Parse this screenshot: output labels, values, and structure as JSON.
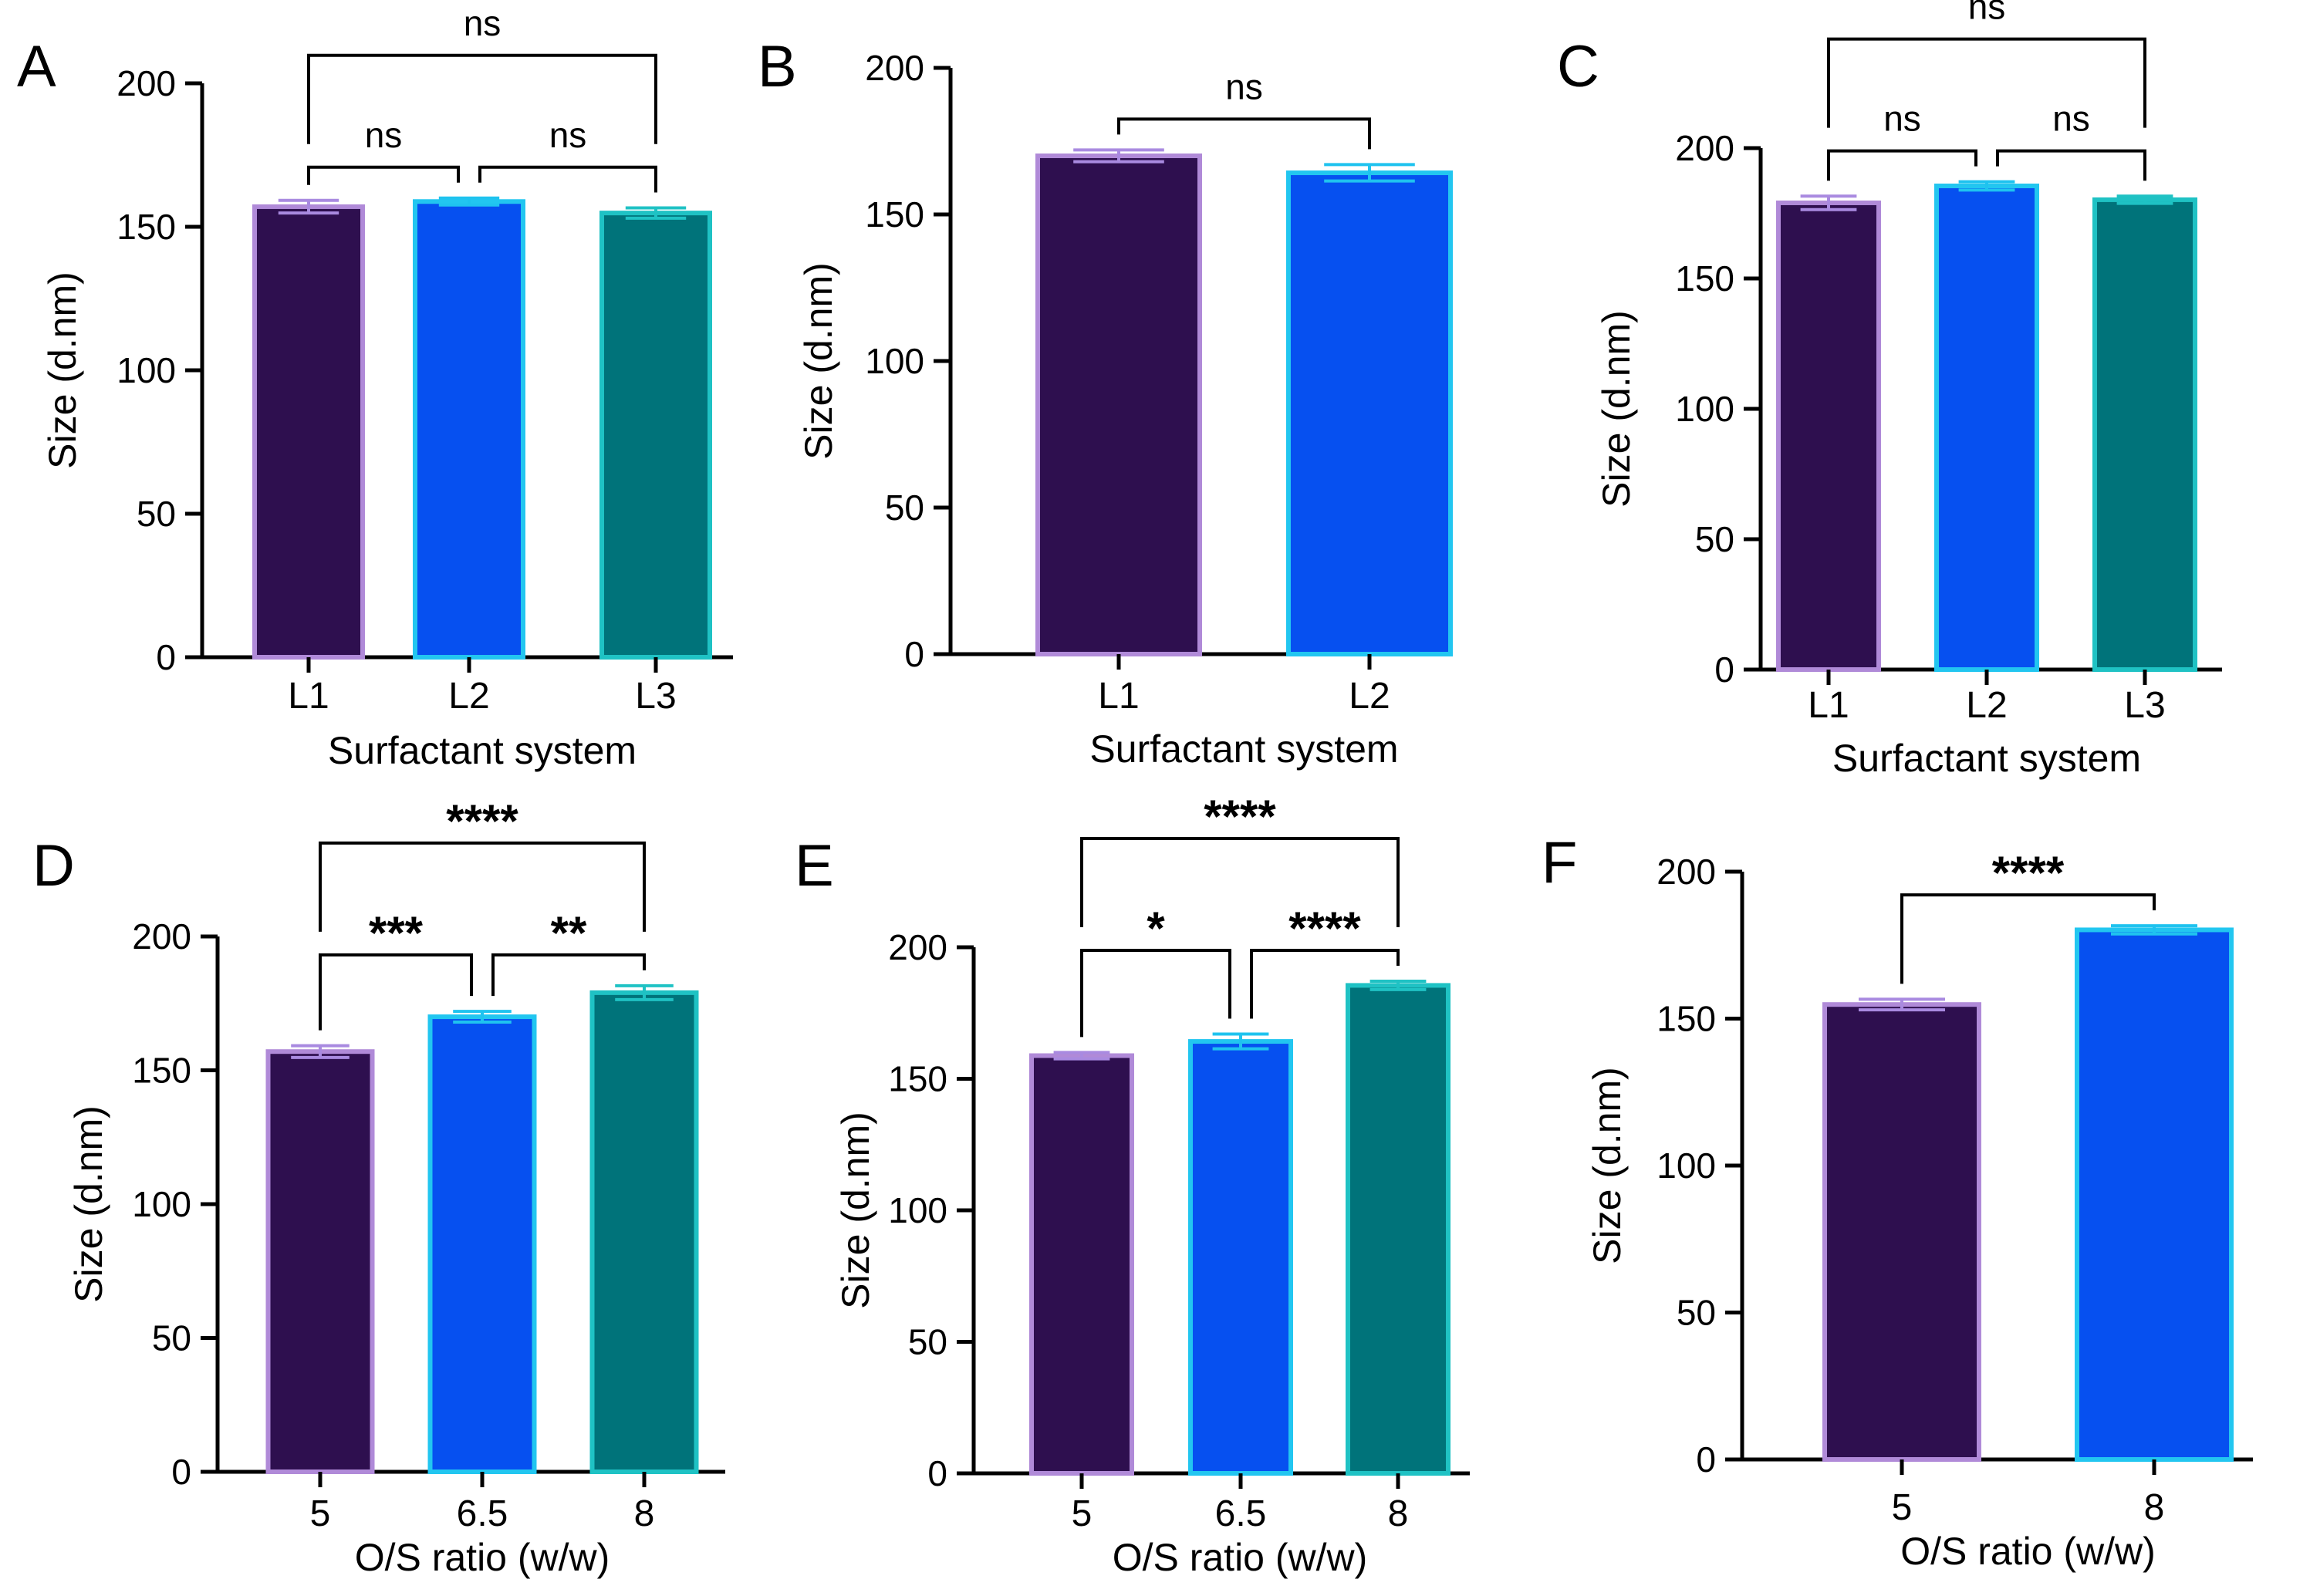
{
  "colors": {
    "fill": [
      "#2e0f4f",
      "#0650f0",
      "#00737a"
    ],
    "edge": [
      "#b08ad8",
      "#22c6f0",
      "#1fc2c4"
    ],
    "err": [
      "#a98ae0",
      "#1fc3ef",
      "#1fc2c4"
    ]
  },
  "chart_data": [
    {
      "panel": "A",
      "type": "bar",
      "categories": [
        "L1",
        "L2",
        "L3"
      ],
      "values": [
        157,
        158.8,
        154.8
      ],
      "errors": [
        2.2,
        1.2,
        1.8
      ],
      "ylim": [
        0,
        200
      ],
      "yticks": [
        "0",
        "50",
        "100",
        "150",
        "200"
      ],
      "ylabel": "Size (d.nm)",
      "xlabel": "Surfactant system",
      "comparisons": [
        {
          "from": 0,
          "to": 1,
          "label": "ns",
          "level": 1
        },
        {
          "from": 1,
          "to": 2,
          "label": "ns",
          "level": 1
        },
        {
          "from": 0,
          "to": 2,
          "label": "ns",
          "level": 2
        }
      ]
    },
    {
      "panel": "B",
      "type": "bar",
      "categories": [
        "L1",
        "L2"
      ],
      "values": [
        170,
        164.2
      ],
      "errors": [
        2.0,
        2.8
      ],
      "ylim": [
        0,
        200
      ],
      "yticks": [
        "0",
        "50",
        "100",
        "150",
        "200"
      ],
      "ylabel": "Size (d.nm)",
      "xlabel": "Surfactant system",
      "comparisons": [
        {
          "from": 0,
          "to": 1,
          "label": "ns",
          "level": 1
        }
      ]
    },
    {
      "panel": "C",
      "type": "bar",
      "categories": [
        "L1",
        "L2",
        "L3"
      ],
      "values": [
        179,
        185.5,
        180.2
      ],
      "errors": [
        2.6,
        1.6,
        1.4
      ],
      "ylim": [
        0,
        200
      ],
      "yticks": [
        "0",
        "50",
        "100",
        "150",
        "200"
      ],
      "ylabel": "Size (d.nm)",
      "xlabel": "Surfactant system",
      "comparisons": [
        {
          "from": 0,
          "to": 1,
          "label": "ns",
          "level": 1
        },
        {
          "from": 1,
          "to": 2,
          "label": "ns",
          "level": 1
        },
        {
          "from": 0,
          "to": 2,
          "label": "ns",
          "level": 2
        }
      ]
    },
    {
      "panel": "D",
      "type": "bar",
      "categories": [
        "5",
        "6.5",
        "8"
      ],
      "values": [
        157,
        170,
        179
      ],
      "errors": [
        2.2,
        2.0,
        2.6
      ],
      "ylim": [
        0,
        200
      ],
      "yticks": [
        "0",
        "50",
        "100",
        "150",
        "200"
      ],
      "ylabel": "Size (d.nm)",
      "xlabel": "O/S ratio (w/w)",
      "comparisons": [
        {
          "from": 0,
          "to": 1,
          "label": "***",
          "level": 1
        },
        {
          "from": 1,
          "to": 2,
          "label": "**",
          "level": 1
        },
        {
          "from": 0,
          "to": 2,
          "label": "****",
          "level": 2
        }
      ]
    },
    {
      "panel": "E",
      "type": "bar",
      "categories": [
        "5",
        "6.5",
        "8"
      ],
      "values": [
        158.8,
        164.2,
        185.5
      ],
      "errors": [
        1.2,
        2.8,
        1.6
      ],
      "ylim": [
        0,
        200
      ],
      "yticks": [
        "0",
        "50",
        "100",
        "150",
        "200"
      ],
      "ylabel": "Size (d.nm)",
      "xlabel": "O/S ratio (w/w)",
      "comparisons": [
        {
          "from": 0,
          "to": 1,
          "label": "*",
          "level": 1
        },
        {
          "from": 1,
          "to": 2,
          "label": "****",
          "level": 1
        },
        {
          "from": 0,
          "to": 2,
          "label": "****",
          "level": 2
        }
      ]
    },
    {
      "panel": "F",
      "type": "bar",
      "categories": [
        "5",
        "8"
      ],
      "values": [
        154.8,
        180.2
      ],
      "errors": [
        1.8,
        1.4
      ],
      "ylim": [
        0,
        200
      ],
      "yticks": [
        "0",
        "50",
        "100",
        "150",
        "200"
      ],
      "ylabel": "Size (d.nm)",
      "xlabel": "O/S ratio (w/w)",
      "comparisons": [
        {
          "from": 0,
          "to": 1,
          "label": "****",
          "level": 1
        }
      ]
    }
  ]
}
